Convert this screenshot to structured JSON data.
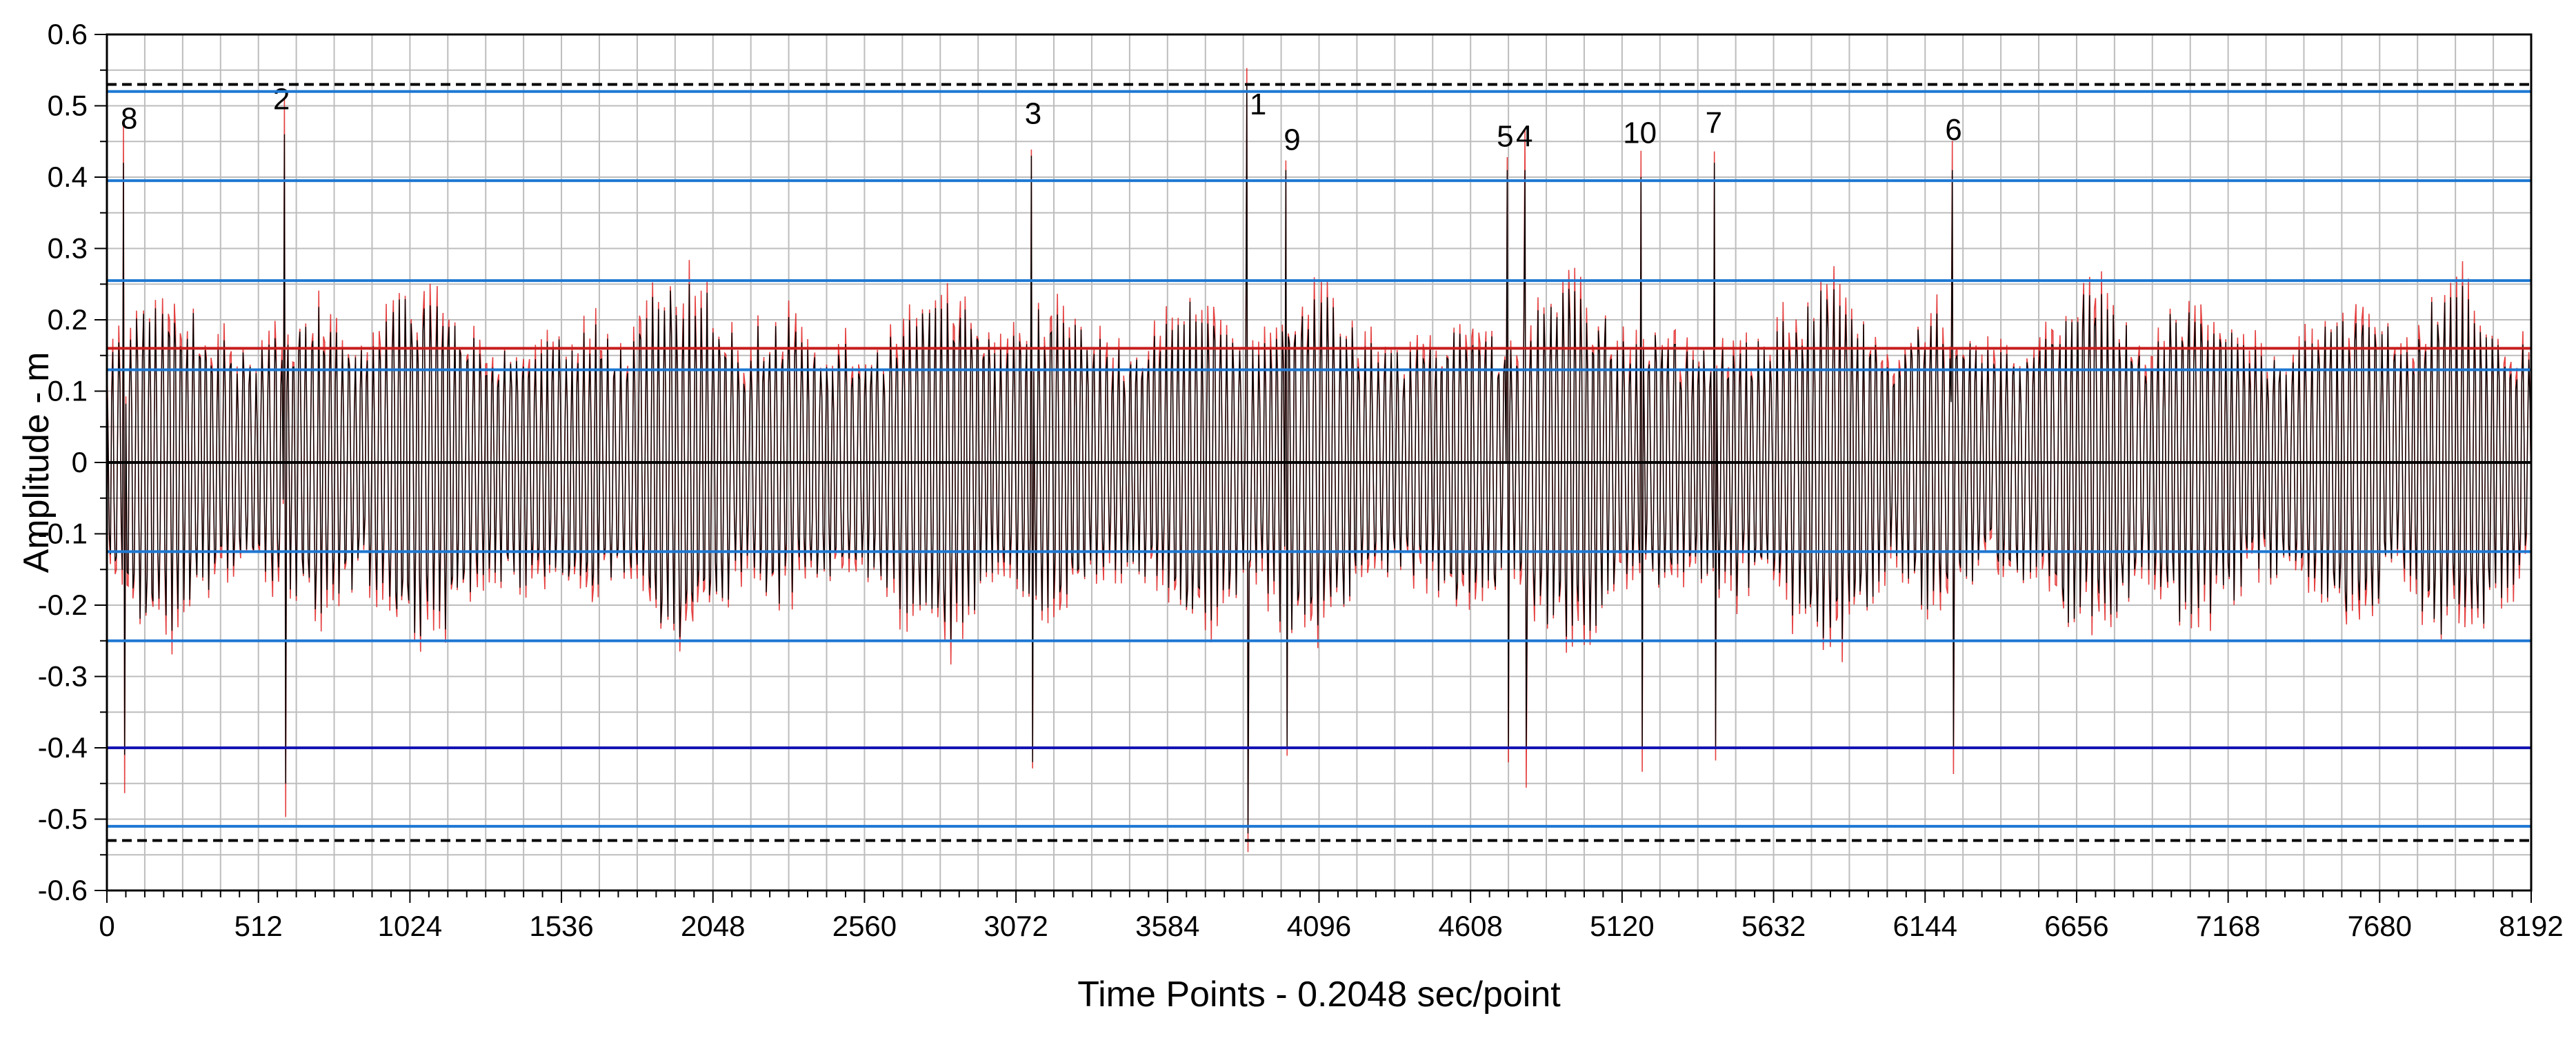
{
  "chart_data": {
    "type": "line",
    "title": "",
    "xlabel": "Time Points - 0.2048 sec/point",
    "ylabel": "Amplitude - m",
    "xlim": [
      0,
      8192
    ],
    "ylim": [
      -0.6,
      0.6
    ],
    "x_ticks": [
      0,
      512,
      1024,
      1536,
      2048,
      2560,
      3072,
      3584,
      4096,
      4608,
      5120,
      5632,
      6144,
      6656,
      7168,
      7680,
      8192
    ],
    "y_ticks": [
      0.6,
      0.5,
      0.4,
      0.3,
      0.2,
      0.1,
      0,
      -0.1,
      -0.2,
      -0.3,
      -0.4,
      -0.5,
      -0.6
    ],
    "y_tick_labels": [
      "0.6",
      "0.5",
      "0.4",
      "0.3",
      "0.2",
      "0.1",
      "0",
      "-0.1",
      "-0.2",
      "-0.3",
      "-0.4",
      "-0.5",
      "-0.6"
    ],
    "grid": true,
    "series": [
      {
        "name": "wave record (black)",
        "color": "#000000",
        "description": "dense oscillating time series"
      },
      {
        "name": "envelope (red)",
        "color": "#e02020",
        "description": "wave envelope"
      }
    ],
    "reference_lines": [
      {
        "value": 0.53,
        "style": "dashed",
        "color": "#000000"
      },
      {
        "value": 0.52,
        "style": "solid",
        "color": "#1e78d2"
      },
      {
        "value": 0.395,
        "style": "solid",
        "color": "#1e78d2"
      },
      {
        "value": 0.255,
        "style": "solid",
        "color": "#1e78d2"
      },
      {
        "value": 0.16,
        "style": "solid",
        "color": "#c81e1e"
      },
      {
        "value": 0.13,
        "style": "solid",
        "color": "#1e78d2"
      },
      {
        "value": 0,
        "style": "solid",
        "color": "#000000"
      },
      {
        "value": -0.125,
        "style": "solid",
        "color": "#1e78d2"
      },
      {
        "value": -0.25,
        "style": "solid",
        "color": "#1e78d2"
      },
      {
        "value": -0.4,
        "style": "solid",
        "color": "#1414b4"
      },
      {
        "value": -0.51,
        "style": "solid",
        "color": "#1e78d2"
      },
      {
        "value": -0.53,
        "style": "dashed",
        "color": "#000000"
      }
    ],
    "peaks": [
      {
        "label": "1",
        "x": 3850,
        "y": 0.53,
        "y_min": -0.52
      },
      {
        "label": "2",
        "x": 600,
        "y": 0.46,
        "y_min": -0.45
      },
      {
        "label": "3",
        "x": 3125,
        "y": 0.43,
        "y_min": -0.42
      },
      {
        "label": "4",
        "x": 4790,
        "y": 0.41,
        "y_min": -0.4
      },
      {
        "label": "5",
        "x": 4730,
        "y": 0.41,
        "y_min": -0.4
      },
      {
        "label": "6",
        "x": 6235,
        "y": 0.41,
        "y_min": -0.4
      },
      {
        "label": "7",
        "x": 5430,
        "y": 0.42,
        "y_min": -0.4
      },
      {
        "label": "8",
        "x": 55,
        "y": 0.42,
        "y_min": -0.41
      },
      {
        "label": "9",
        "x": 3985,
        "y": 0.41,
        "y_min": -0.4
      },
      {
        "label": "10",
        "x": 5185,
        "y": 0.4,
        "y_min": -0.4
      }
    ],
    "peak_label_positions": [
      {
        "label": "1",
        "x": 3890,
        "y": 0.488
      },
      {
        "label": "2",
        "x": 590,
        "y": 0.495
      },
      {
        "label": "3",
        "x": 3130,
        "y": 0.475
      },
      {
        "label": "4",
        "x": 4790,
        "y": 0.443
      },
      {
        "label": "5",
        "x": 4725,
        "y": 0.443
      },
      {
        "label": "6",
        "x": 6240,
        "y": 0.452
      },
      {
        "label": "7",
        "x": 5430,
        "y": 0.462
      },
      {
        "label": "8",
        "x": 75,
        "y": 0.468
      },
      {
        "label": "9",
        "x": 4005,
        "y": 0.438
      },
      {
        "label": "10",
        "x": 5180,
        "y": 0.448
      }
    ]
  }
}
